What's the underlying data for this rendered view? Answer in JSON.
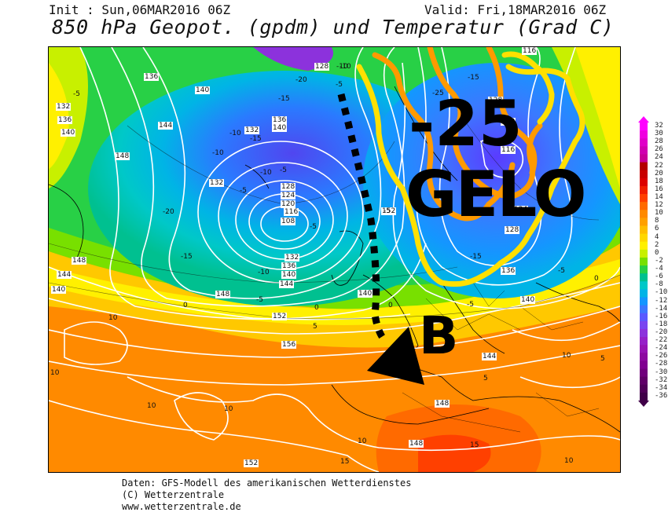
{
  "header": {
    "init": "Init : Sun,06MAR2016 06Z",
    "valid": "Valid: Fri,18MAR2016 06Z",
    "title": "850 hPa Geopot. (gpdm) und Temperatur (Grad C)"
  },
  "colorbar": {
    "labels": [
      "32",
      "30",
      "28",
      "26",
      "24",
      "22",
      "20",
      "18",
      "16",
      "14",
      "12",
      "10",
      "8",
      "6",
      "4",
      "2",
      "0",
      "-2",
      "-4",
      "-6",
      "-8",
      "-10",
      "-12",
      "-14",
      "-16",
      "-18",
      "-20",
      "-22",
      "-24",
      "-26",
      "-28",
      "-30",
      "-32",
      "-34",
      "-36"
    ],
    "colors": [
      "#ff00ff",
      "#f000e0",
      "#e000c8",
      "#d000b0",
      "#c80098",
      "#b40000",
      "#c80000",
      "#dc0000",
      "#f01e00",
      "#ff4000",
      "#ff6a00",
      "#ff8a00",
      "#ffa000",
      "#ffbe00",
      "#ffd700",
      "#fff000",
      "#c8f000",
      "#78e000",
      "#28d046",
      "#00c090",
      "#00c8c8",
      "#00b4e6",
      "#1496ff",
      "#3c78ff",
      "#5a5aff",
      "#7a46f0",
      "#8c32dc",
      "#9620c8",
      "#9614b4",
      "#8c0aa0",
      "#800090",
      "#70007c",
      "#600068",
      "#500058",
      "#400048"
    ]
  },
  "overlay": {
    "temp_text": "-25",
    "gelo_text": "GELO",
    "b_text": "B"
  },
  "contour_labels": {
    "geopotential": [
      "136",
      "140",
      "132",
      "136",
      "140",
      "144",
      "148",
      "132",
      "132",
      "136",
      "140",
      "128",
      "124",
      "120",
      "116",
      "108",
      "128",
      "132",
      "136",
      "140",
      "144",
      "148",
      "152",
      "156",
      "148",
      "144",
      "140",
      "152",
      "128",
      "112",
      "116",
      "116",
      "124",
      "128",
      "136",
      "140",
      "144",
      "148",
      "140",
      "148",
      "152"
    ],
    "temperature": [
      "-5",
      "-10",
      "-5",
      "-20",
      "-15",
      "-10",
      "-15",
      "-10",
      "-5",
      "-10",
      "-5",
      "-20",
      "-15",
      "-5",
      "-15",
      "-10",
      "-5",
      "0",
      "0",
      "5",
      "-5",
      "-5",
      "-25",
      "-15",
      "-5",
      "0",
      "5",
      "10",
      "10",
      "10",
      "10",
      "15",
      "15",
      "10",
      "10",
      "-10",
      "10",
      "5",
      "0"
    ]
  },
  "footer": {
    "line1": "Daten: GFS-Modell des amerikanischen Wetterdienstes",
    "line2": "(C) Wetterzentrale",
    "line3": "www.wetterzentrale.de"
  }
}
